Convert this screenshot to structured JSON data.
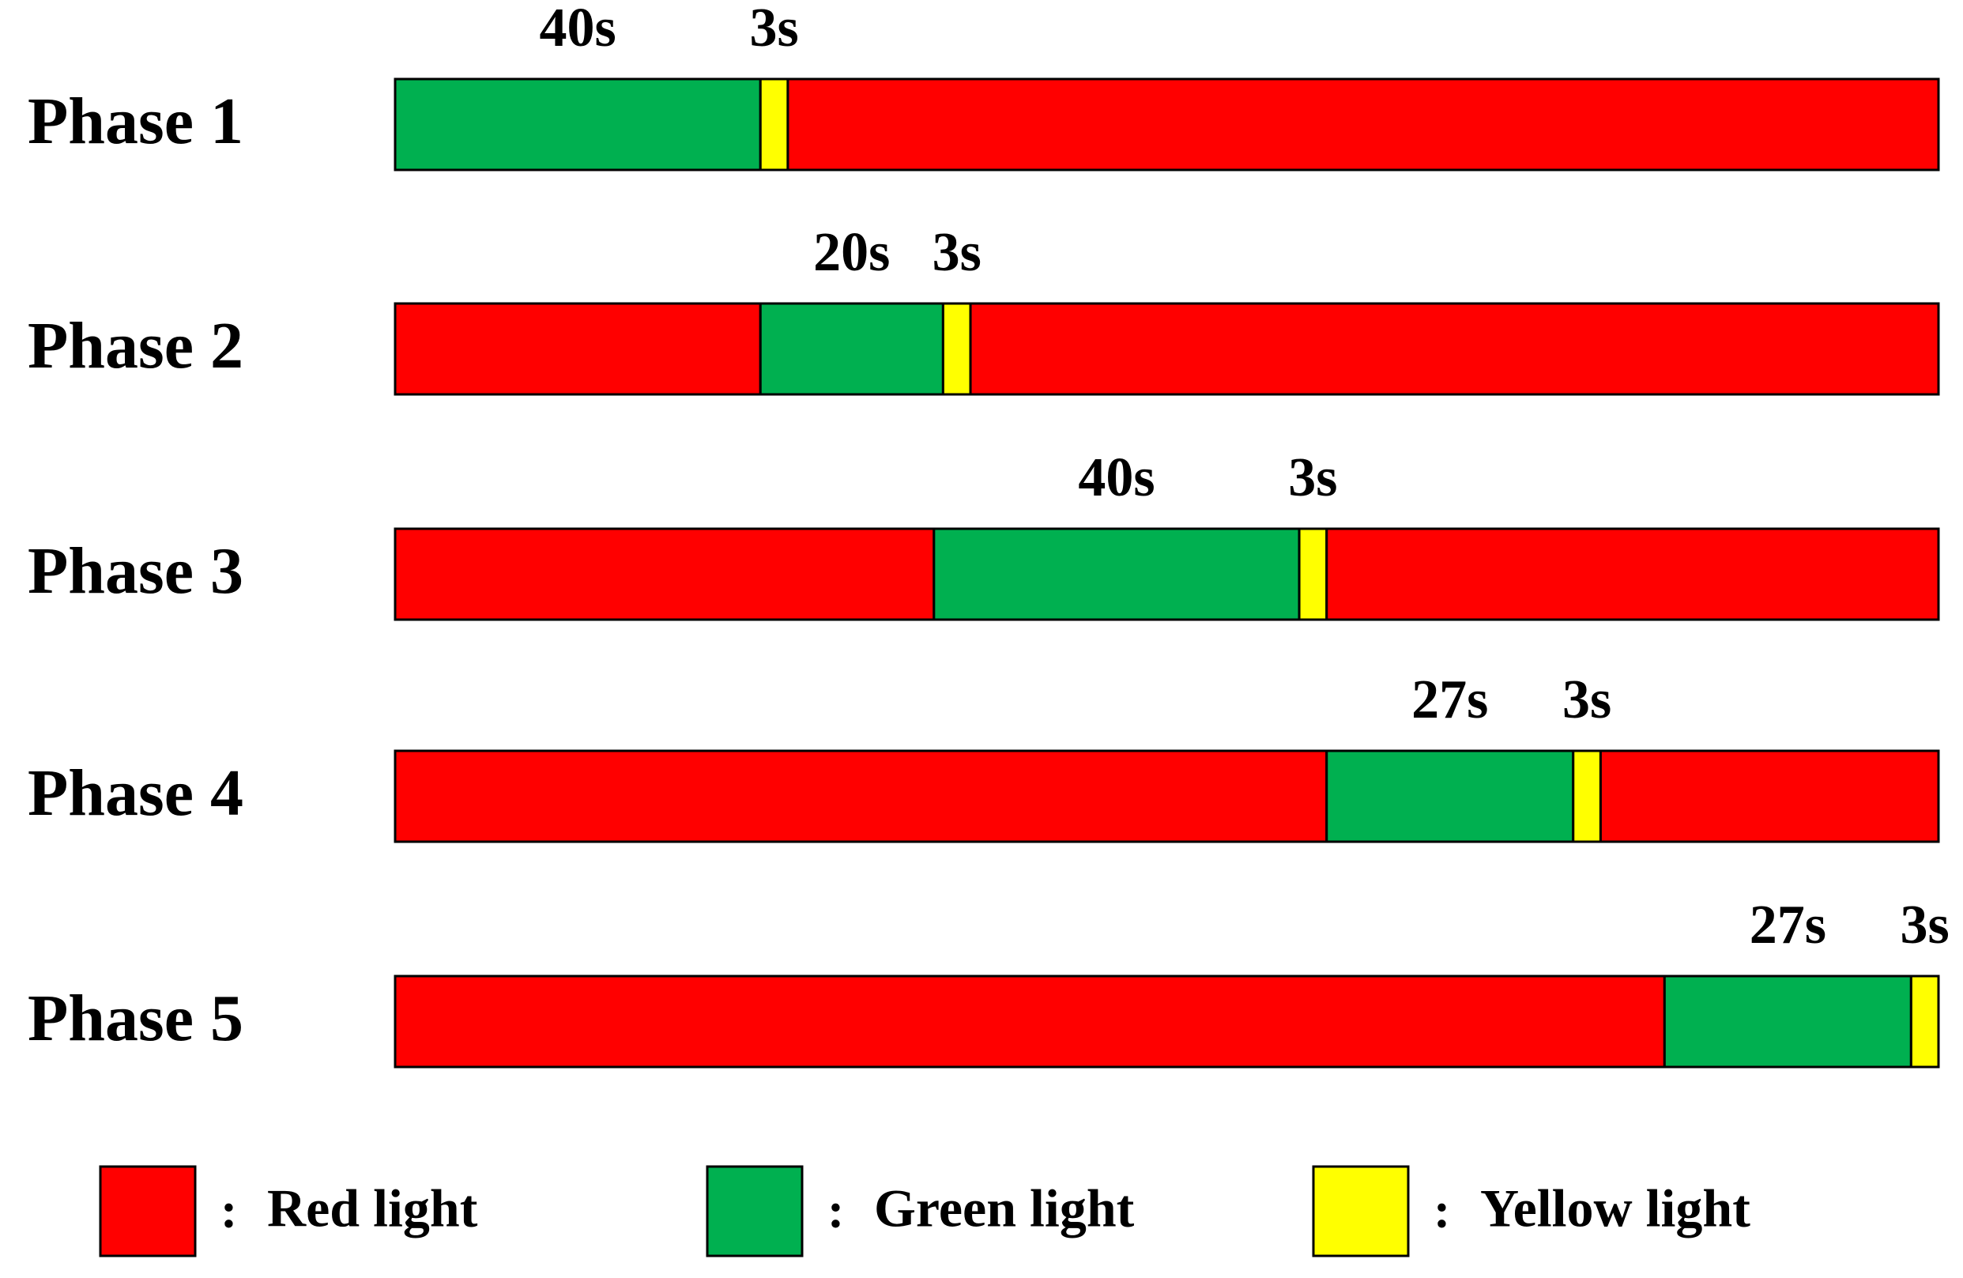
{
  "chart_data": {
    "type": "timeline",
    "xlim": [
      0,
      169
    ],
    "categories": [
      "Phase 1",
      "Phase 2",
      "Phase 3",
      "Phase 4",
      "Phase 5"
    ],
    "series": [
      {
        "name": "Red light",
        "color": "#ff0000"
      },
      {
        "name": "Green light",
        "color": "#00b050"
      },
      {
        "name": "Yellow light",
        "color": "#ffff00"
      }
    ],
    "legend_separator": ":",
    "segments": [
      [
        {
          "series": 1,
          "value": 40,
          "value_label": "40s"
        },
        {
          "series": 2,
          "value": 3,
          "value_label": "3s"
        },
        {
          "series": 0,
          "value": 126
        }
      ],
      [
        {
          "series": 0,
          "value": 40
        },
        {
          "series": 1,
          "value": 20,
          "value_label": "20s"
        },
        {
          "series": 2,
          "value": 3,
          "value_label": "3s"
        },
        {
          "series": 0,
          "value": 106
        }
      ],
      [
        {
          "series": 0,
          "value": 59
        },
        {
          "series": 1,
          "value": 40,
          "value_label": "40s"
        },
        {
          "series": 2,
          "value": 3,
          "value_label": "3s"
        },
        {
          "series": 0,
          "value": 67
        }
      ],
      [
        {
          "series": 0,
          "value": 102
        },
        {
          "series": 1,
          "value": 27,
          "value_label": "27s"
        },
        {
          "series": 2,
          "value": 3,
          "value_label": "3s"
        },
        {
          "series": 0,
          "value": 37
        }
      ],
      [
        {
          "series": 0,
          "value": 139
        },
        {
          "series": 1,
          "value": 27,
          "value_label": "27s"
        },
        {
          "series": 2,
          "value": 3,
          "value_label": "3s"
        }
      ]
    ]
  }
}
